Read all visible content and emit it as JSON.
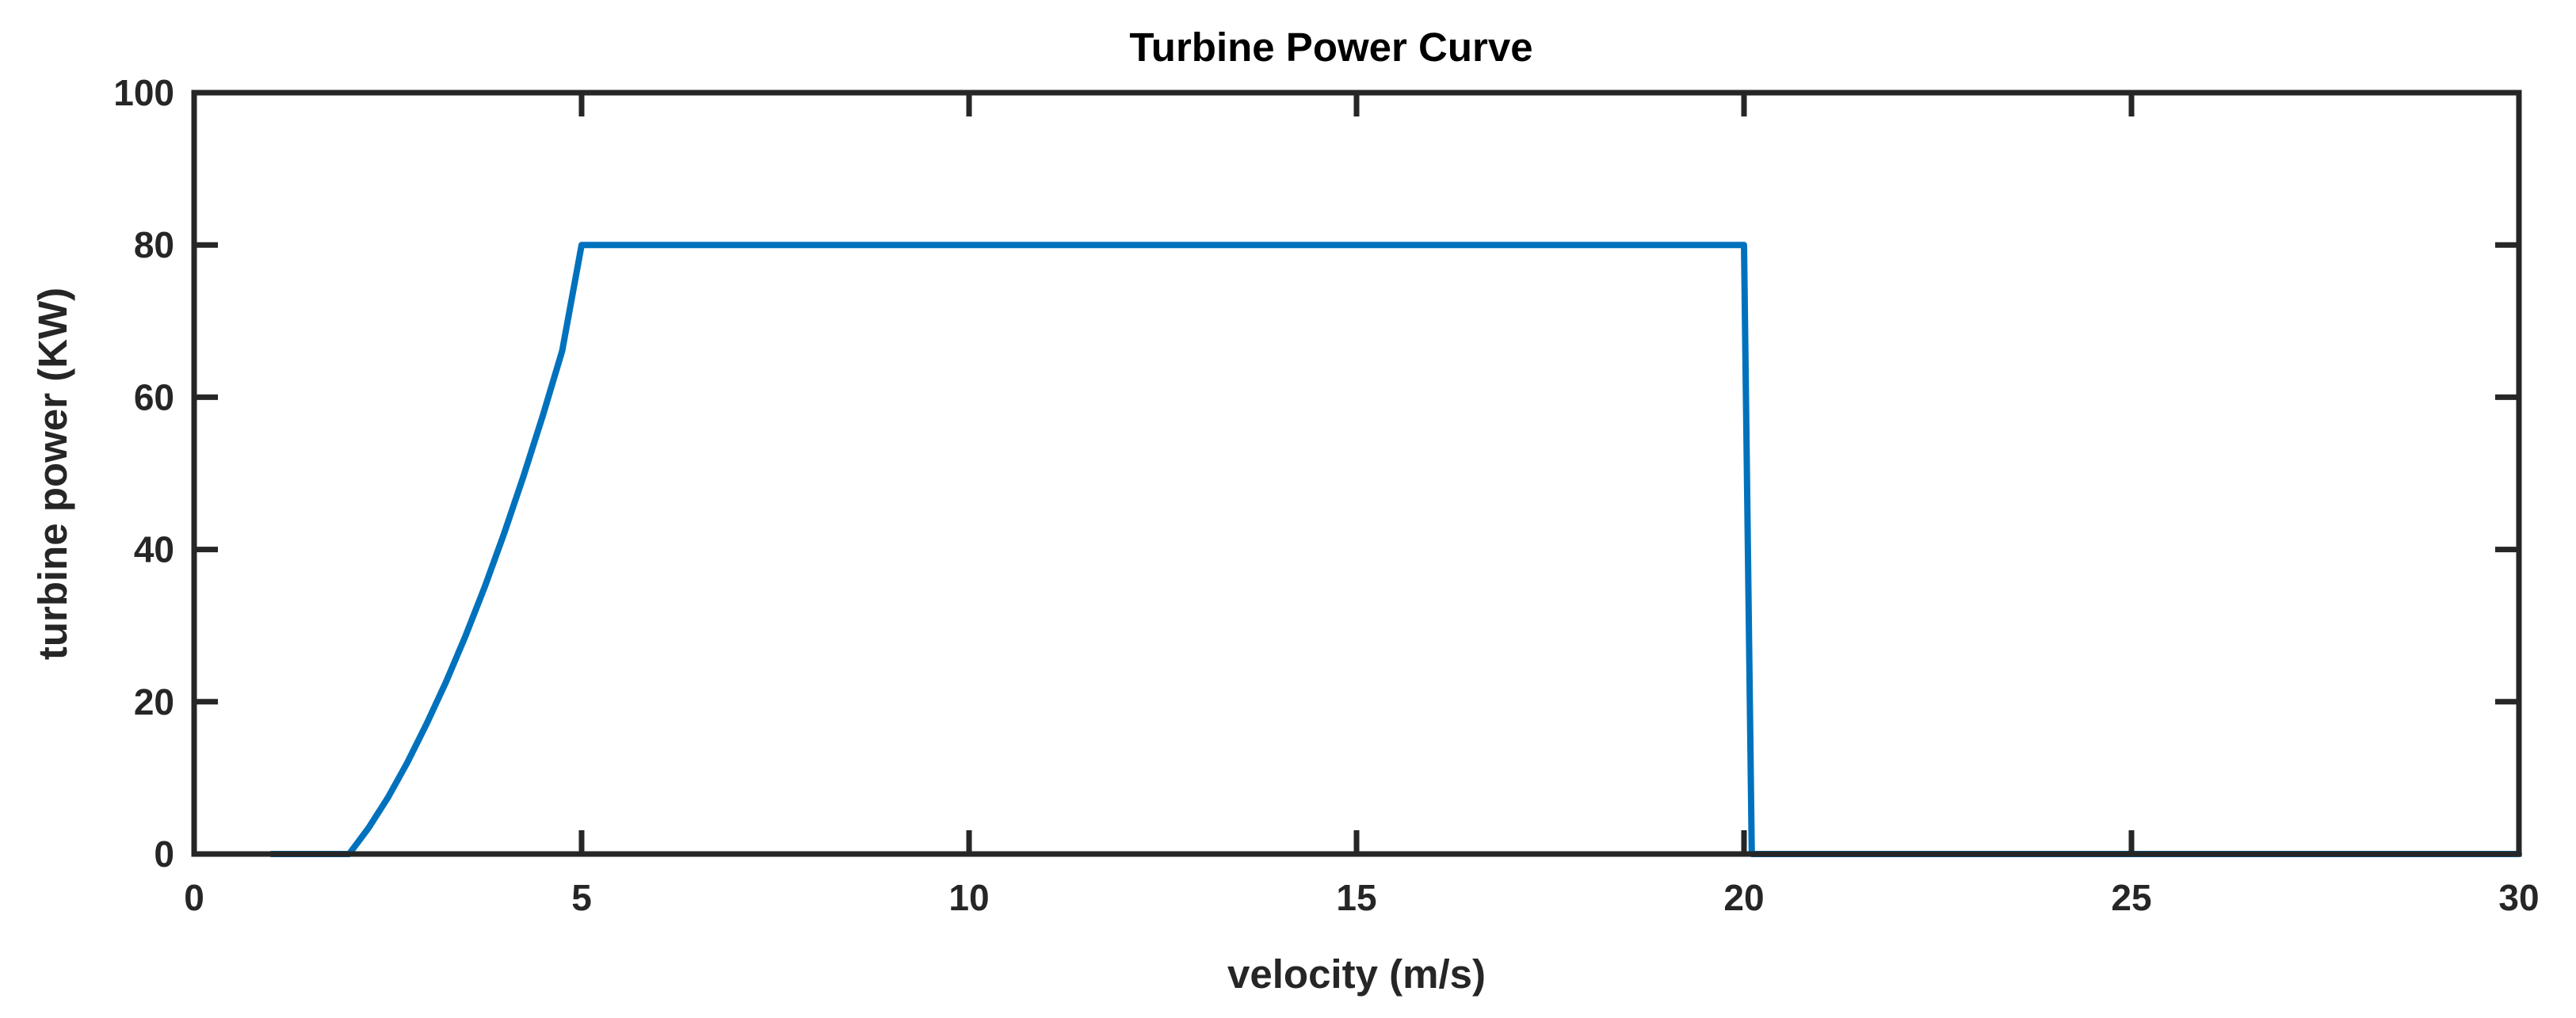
{
  "chart_data": {
    "type": "line",
    "title": "Turbine Power Curve",
    "xlabel": "velocity (m/s)",
    "ylabel": "turbine power (KW)",
    "xlim": [
      0,
      30
    ],
    "ylim": [
      0,
      100
    ],
    "xticks": [
      0,
      5,
      10,
      15,
      20,
      25,
      30
    ],
    "yticks": [
      0,
      20,
      40,
      60,
      80,
      100
    ],
    "grid": false,
    "series": [
      {
        "name": "turbine power",
        "color": "#0072BD",
        "x": [
          1,
          2,
          2.25,
          2.5,
          2.75,
          3,
          3.25,
          3.5,
          3.75,
          4,
          4.25,
          4.5,
          4.75,
          5,
          20,
          20.1,
          30
        ],
        "y": [
          0,
          0,
          3.4,
          7.4,
          12,
          17.1,
          22.6,
          28.6,
          35.1,
          42.1,
          49.6,
          57.6,
          66.1,
          80,
          80,
          0,
          0
        ]
      }
    ]
  }
}
